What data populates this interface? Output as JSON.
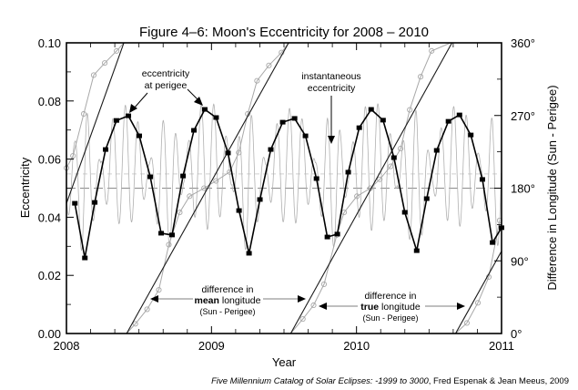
{
  "chart_data": {
    "type": "line",
    "title": "Figure 4–6:  Moon's Eccentricity for 2008 – 2010",
    "xlabel": "Year",
    "ylabel": "Eccentricity",
    "y2label": "Difference in Longitude (Sun - Perigee)",
    "xlim": [
      2008,
      2011
    ],
    "ylim": [
      0.0,
      0.1
    ],
    "y2lim": [
      0,
      360
    ],
    "x_ticks": [
      2008,
      2009,
      2010,
      2011
    ],
    "x_tick_labels": [
      "2008",
      "2009",
      "2010",
      "2011"
    ],
    "y_ticks": [
      0.0,
      0.02,
      0.04,
      0.06,
      0.08,
      0.1
    ],
    "y_tick_labels": [
      "0.00",
      "0.02",
      "0.04",
      "0.06",
      "0.08",
      "0.10"
    ],
    "y2_ticks": [
      0,
      90,
      180,
      270,
      360
    ],
    "y2_tick_labels": [
      "0°",
      "90°",
      "180°",
      "270°",
      "360°"
    ],
    "grid": false,
    "reference_lines": [
      {
        "name": "mean eccentricity",
        "y": 0.0549,
        "style": "dotted-light"
      },
      {
        "name": "180 degrees",
        "y": 0.05,
        "style": "dashed"
      }
    ],
    "series": [
      {
        "name": "eccentricity at perigee",
        "style": "black line with square markers",
        "x": [
          2008.058,
          2008.127,
          2008.195,
          2008.27,
          2008.345,
          2008.427,
          2008.502,
          2008.578,
          2008.653,
          2008.728,
          2008.804,
          2008.879,
          2008.954,
          2009.032,
          2009.114,
          2009.19,
          2009.259,
          2009.334,
          2009.409,
          2009.491,
          2009.573,
          2009.648,
          2009.724,
          2009.799,
          2009.868,
          2009.943,
          2010.019,
          2010.101,
          2010.183,
          2010.258,
          2010.333,
          2010.415,
          2010.484,
          2010.553,
          2010.634,
          2010.71,
          2010.788,
          2010.868,
          2010.938,
          2011.0
        ],
        "values": [
          0.0448,
          0.026,
          0.0451,
          0.0633,
          0.0733,
          0.0749,
          0.068,
          0.0539,
          0.0345,
          0.0339,
          0.0542,
          0.0699,
          0.0771,
          0.0743,
          0.0621,
          0.0423,
          0.0276,
          0.0461,
          0.0633,
          0.0727,
          0.074,
          0.068,
          0.0533,
          0.0332,
          0.0342,
          0.0555,
          0.0708,
          0.0771,
          0.0734,
          0.0605,
          0.0417,
          0.0285,
          0.0464,
          0.063,
          0.073,
          0.0752,
          0.0683,
          0.053,
          0.0313,
          0.0364
        ]
      },
      {
        "name": "instantaneous eccentricity",
        "style": "thin grey oscillating line",
        "mean": 0.0549,
        "oscillation_period_days": 31.8
      },
      {
        "name": "difference in mean longitude (Sun - Perigee)",
        "style": "black straight line, right axis",
        "segments": [
          {
            "x": [
              2008.0,
              2008.396
            ],
            "deg": [
              161,
              360
            ]
          },
          {
            "x": [
              2008.415,
              2009.532
            ],
            "deg": [
              0,
              360
            ]
          },
          {
            "x": [
              2009.546,
              2010.658
            ],
            "deg": [
              0,
              360
            ]
          },
          {
            "x": [
              2010.683,
              2011.0
            ],
            "deg": [
              0,
              102
            ]
          }
        ]
      },
      {
        "name": "difference in true longitude (Sun - Perigee)",
        "style": "grey line with open circle markers, right axis",
        "segments": [
          {
            "x": [
              2008.0,
              2008.045,
              2008.119,
              2008.188,
              2008.264,
              2008.346,
              2008.396
            ],
            "deg": [
              205,
              220,
              272,
              320,
              335,
              350,
              360
            ]
          },
          {
            "x": [
              2008.415,
              2008.475,
              2008.556,
              2008.637,
              2008.706,
              2008.781,
              2008.849,
              2008.949,
              2009.031,
              2009.125,
              2009.188,
              2009.25,
              2009.314,
              2009.396,
              2009.483,
              2009.532
            ],
            "deg": [
              0,
              12,
              30,
              54,
              110,
              150,
              170,
              180,
              189,
              200,
              224,
              272,
              313,
              332,
              348,
              360
            ]
          },
          {
            "x": [
              2009.546,
              2009.63,
              2009.704,
              2009.776,
              2009.864,
              2009.914,
              2010.003,
              2010.096,
              2010.16,
              2010.235,
              2010.304,
              2010.367,
              2010.442,
              2010.518,
              2010.649
            ],
            "deg": [
              0,
              18,
              35,
              61,
              122,
              150,
              170,
              180,
              191,
              207,
              229,
              277,
              318,
              350,
              360
            ]
          },
          {
            "x": [
              2010.683,
              2010.761,
              2010.837,
              2010.912,
              2010.987
            ],
            "deg": [
              0,
              13,
              38,
              70,
              140
            ]
          }
        ]
      }
    ],
    "annotations": [
      {
        "text_lines": [
          "eccentricity",
          "at perigee"
        ],
        "arrows_to": [
          [
            2008.427,
            0.0749
          ],
          [
            2008.954,
            0.0771
          ]
        ]
      },
      {
        "text_lines": [
          "instantaneous",
          "eccentricity"
        ],
        "arrows_to": [
          [
            2009.811,
            0.065
          ]
        ]
      },
      {
        "text_lines": [
          "difference in",
          "mean longitude",
          "(Sun - Perigee)"
        ],
        "bold_word": "mean",
        "arrows_to": [
          [
            2008.574,
            42
          ],
          [
            2009.63,
            42
          ]
        ]
      },
      {
        "text_lines": [
          "difference in",
          "true longitude",
          "(Sun - Perigee)"
        ],
        "bold_word": "true",
        "arrows_to": [
          [
            2009.697,
            29
          ],
          [
            2010.761,
            29
          ]
        ]
      }
    ]
  },
  "labels": {
    "title": "Figure 4–6:  Moon's Eccentricity for 2008 – 2010",
    "xlabel": "Year",
    "ylabel": "Eccentricity",
    "y2label": "Difference in Longitude (Sun - Perigee)",
    "ann_perigee_1": "eccentricity",
    "ann_perigee_2": "at perigee",
    "ann_inst_1": "instantaneous",
    "ann_inst_2": "eccentricity",
    "ann_mean_1": "difference in",
    "ann_mean_bold": "mean",
    "ann_mean_rest": " longitude",
    "ann_mean_3": "(Sun - Perigee)",
    "ann_true_1": "difference in",
    "ann_true_bold": "true",
    "ann_true_rest": " longitude",
    "ann_true_3": "(Sun - Perigee)",
    "credit_italic": "Five Millennium Catalog of Solar Eclipses: -1999 to 3000",
    "credit_rest": ", Fred Espenak & Jean Meeus, 2009"
  },
  "colors": {
    "axis": "#000000",
    "perigee_line": "#000000",
    "instantaneous": "#b0b0b0",
    "true_longitude": "#a8a8a8",
    "mean_longitude": "#1a1a1a",
    "dashed_ref": "#8c8c8c",
    "dotted_ref": "#d0d0d0"
  }
}
